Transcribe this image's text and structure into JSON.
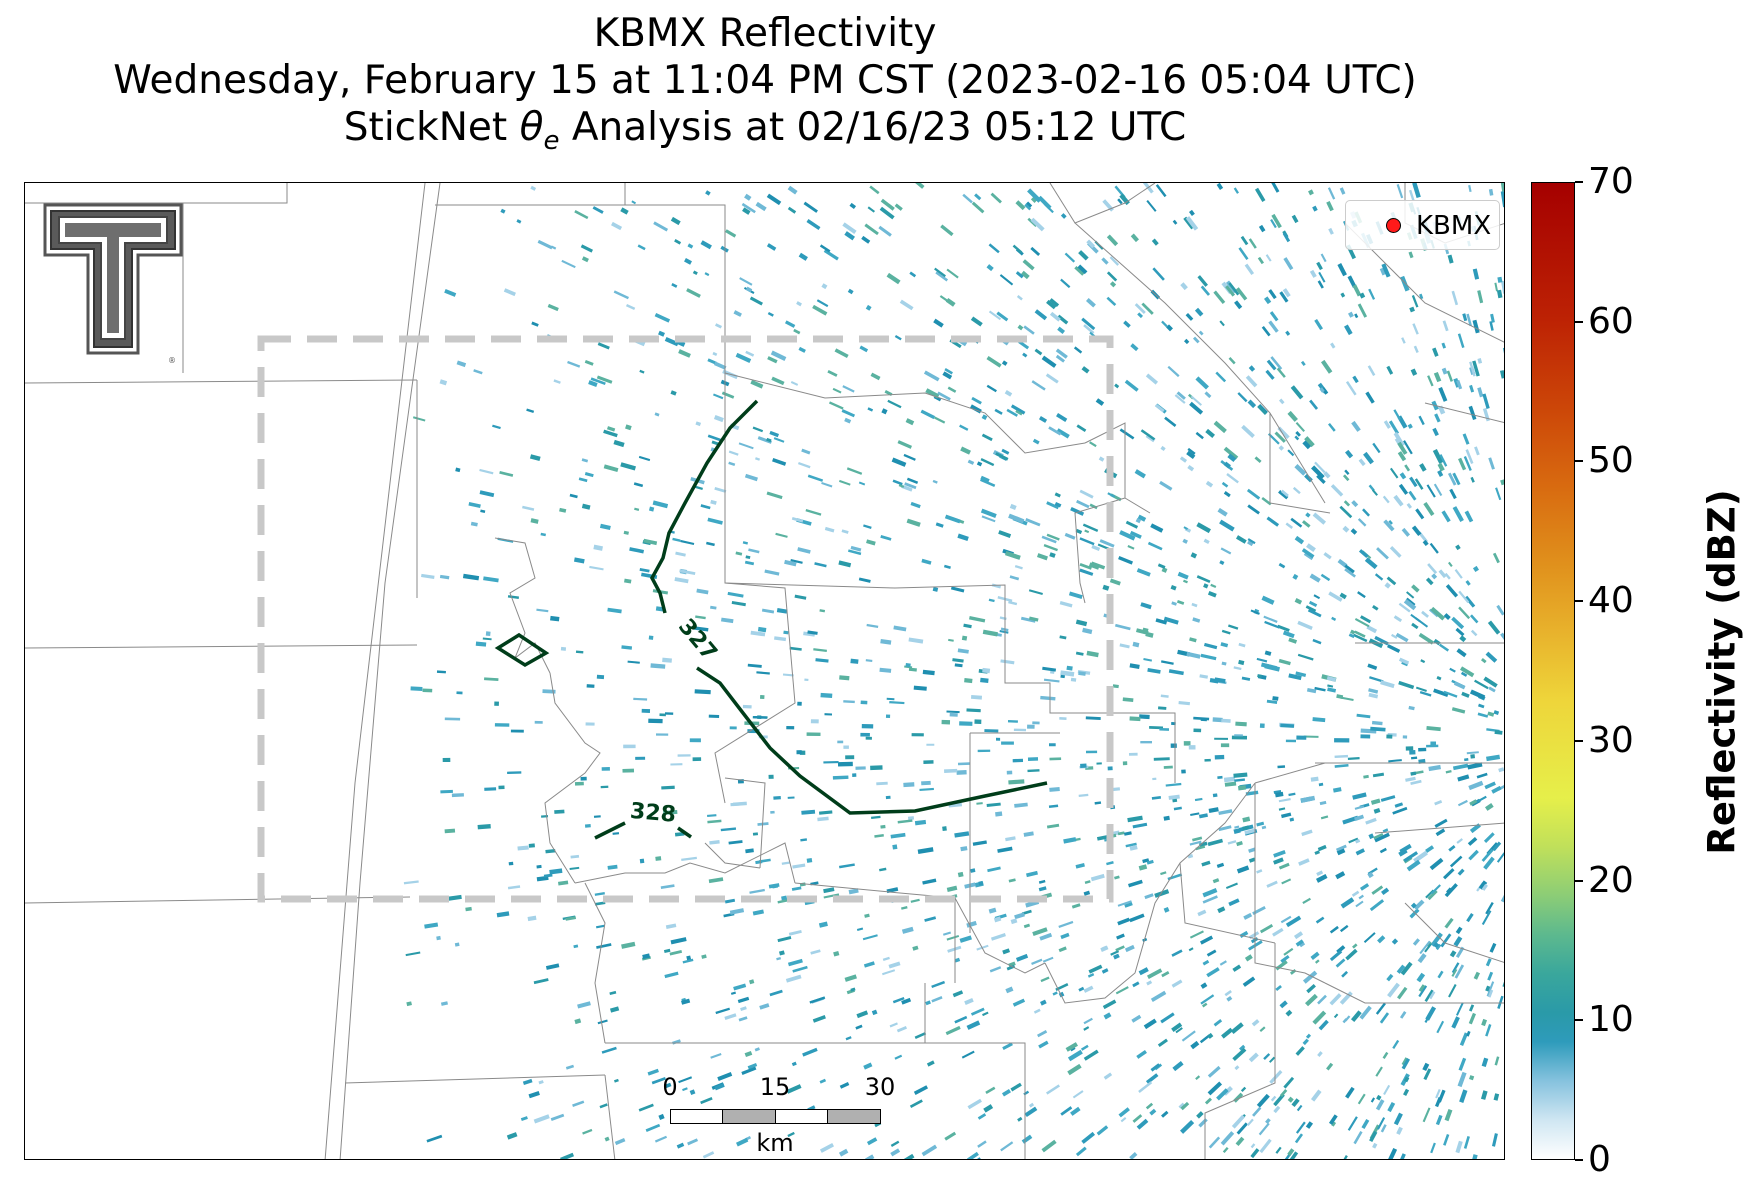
{
  "title": {
    "line1": "KBMX Reflectivity",
    "line2": "Wednesday, February 15 at 11:04 PM CST (2023-02-16 05:04 UTC)",
    "line3_prefix": "StickNet ",
    "line3_symbol": "θ",
    "line3_subscript": "e",
    "line3_suffix": " Analysis at 02/16/23 05:12 UTC"
  },
  "legend": {
    "station_label": "KBMX",
    "marker_color": "#ff1a1a"
  },
  "contours": [
    {
      "label": "327",
      "color": "#003d1a"
    },
    {
      "label": "328",
      "color": "#003d1a"
    }
  ],
  "scalebar": {
    "ticks": [
      "0",
      "15",
      "30"
    ],
    "unit": "km"
  },
  "colorbar": {
    "label": "Reflectivity (dBZ)",
    "ticks": [
      "0",
      "10",
      "20",
      "30",
      "40",
      "50",
      "60",
      "70"
    ],
    "min": 0,
    "max": 70,
    "low_color": "#ffffff",
    "mid_color": "#2e9bbb",
    "high_color": "#a50000"
  },
  "colors": {
    "reflectivity_echo": "#2e9bbb",
    "analysis_box": "#c8c8c8",
    "county_lines": "#888888"
  },
  "icons": {
    "logo": "texas-tech-double-t-logo"
  }
}
